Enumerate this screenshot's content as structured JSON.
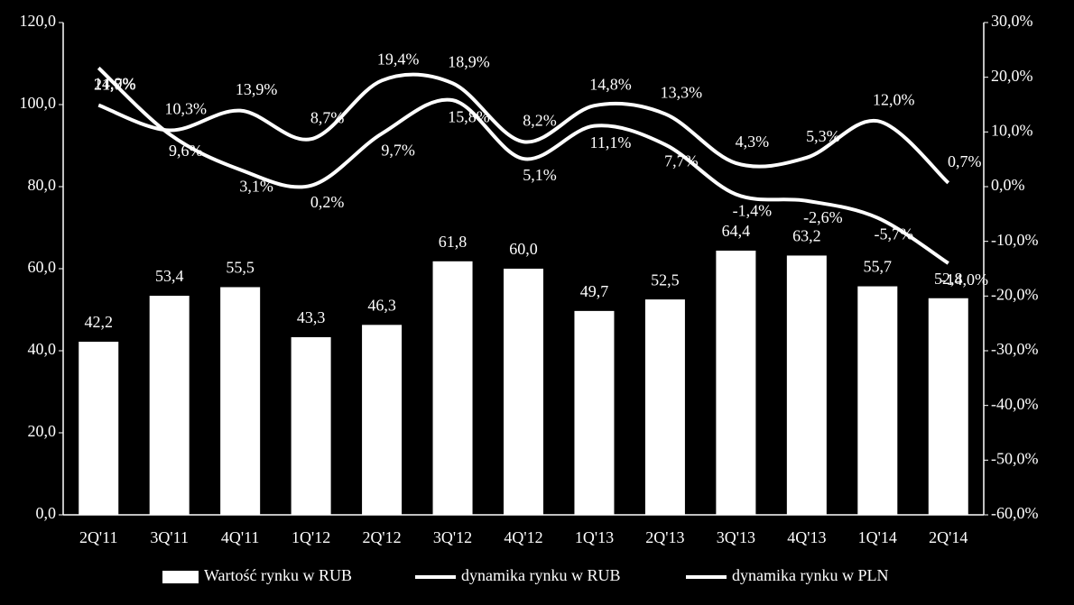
{
  "chart_data": {
    "type": "bar-line",
    "categories": [
      "2Q'11",
      "3Q'11",
      "4Q'11",
      "1Q'12",
      "2Q'12",
      "3Q'12",
      "4Q'12",
      "1Q'13",
      "2Q'13",
      "3Q'13",
      "4Q'13",
      "1Q'14",
      "2Q'14"
    ],
    "series": [
      {
        "name": "Wartość rynku w RUB",
        "type": "bar",
        "color": "#ffffff",
        "values": [
          42.2,
          53.4,
          55.5,
          43.3,
          46.3,
          61.8,
          60.0,
          49.7,
          52.5,
          64.4,
          63.2,
          55.7,
          52.8
        ],
        "value_labels": [
          "42,2",
          "53,4",
          "55,5",
          "43,3",
          "46,3",
          "61,8",
          "60,0",
          "49,7",
          "52,5",
          "64,4",
          "63,2",
          "55,7",
          "52,8"
        ]
      },
      {
        "name": "dynamika rynku w RUB",
        "type": "line",
        "axis": "y2",
        "color": "#ffffff",
        "values": [
          14.9,
          10.3,
          13.9,
          8.7,
          19.4,
          18.9,
          8.2,
          14.8,
          13.3,
          4.3,
          5.3,
          12.0,
          0.7
        ],
        "value_labels": [
          "14,9%",
          "10,3%",
          "13,9%",
          "8,7%",
          "19,4%",
          "18,9%",
          "8,2%",
          "14,8%",
          "13,3%",
          "4,3%",
          "5,3%",
          "12,0%",
          "0,7%"
        ]
      },
      {
        "name": "dynamika rynku w PLN",
        "type": "line",
        "axis": "y2",
        "color": "#ffffff",
        "values": [
          21.7,
          9.6,
          3.1,
          0.2,
          9.7,
          15.8,
          5.1,
          11.1,
          7.7,
          -1.4,
          -2.6,
          -5.7,
          -14.0
        ],
        "value_labels": [
          "21,7%",
          "9,6%",
          "3,1%",
          "0,2%",
          "9,7%",
          "15,8%",
          "5,1%",
          "11,1%",
          "7,7%",
          "-1,4%",
          "-2,6%",
          "-5,7%",
          "-14,0%"
        ]
      }
    ],
    "ylim": [
      0,
      120
    ],
    "yticks": [
      {
        "value": 0,
        "label": "0,0"
      },
      {
        "value": 20,
        "label": "20,0"
      },
      {
        "value": 40,
        "label": "40,0"
      },
      {
        "value": 60,
        "label": "60,0"
      },
      {
        "value": 80,
        "label": "80,0"
      },
      {
        "value": 100,
        "label": "100,0"
      },
      {
        "value": 120,
        "label": "120,0"
      }
    ],
    "y2lim": [
      -60,
      30
    ],
    "y2ticks": [
      {
        "value": -60,
        "label": "-60,0%"
      },
      {
        "value": -50,
        "label": "-50,0%"
      },
      {
        "value": -40,
        "label": "-40,0%"
      },
      {
        "value": -30,
        "label": "-30,0%"
      },
      {
        "value": -20,
        "label": "-20,0%"
      },
      {
        "value": -10,
        "label": "-10,0%"
      },
      {
        "value": 0,
        "label": "0,0%"
      },
      {
        "value": 10,
        "label": "10,0%"
      },
      {
        "value": 20,
        "label": "20,0%"
      },
      {
        "value": 30,
        "label": "30,0%"
      }
    ],
    "legend": "bottom"
  }
}
